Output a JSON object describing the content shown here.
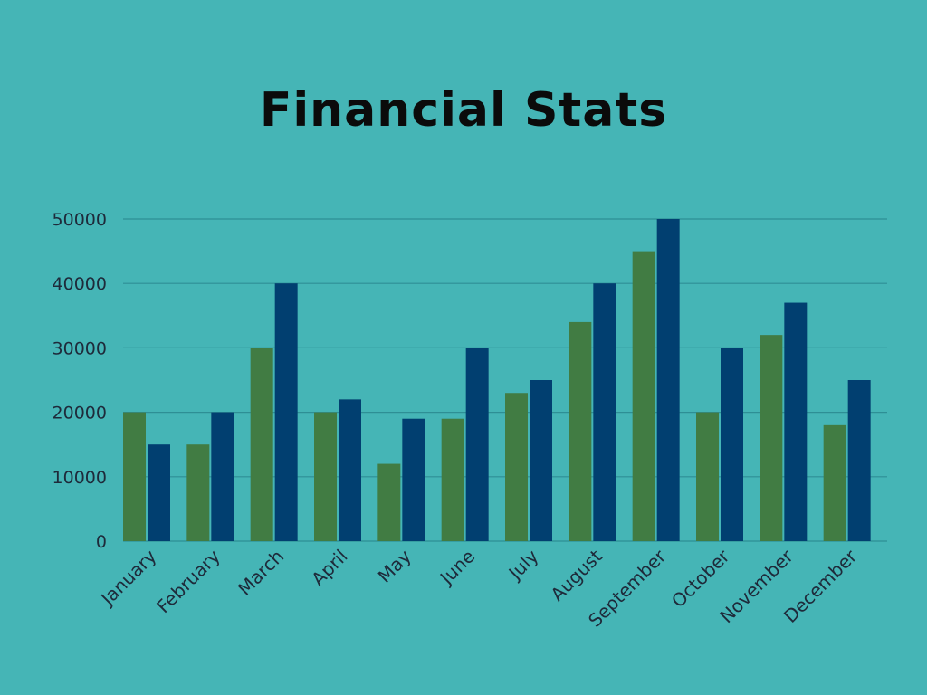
{
  "chart_data": {
    "type": "bar",
    "title": "Financial Stats",
    "xlabel": "",
    "ylabel": "",
    "categories": [
      "January",
      "February",
      "March",
      "April",
      "May",
      "June",
      "July",
      "August",
      "September",
      "October",
      "November",
      "December"
    ],
    "series": [
      {
        "color": "#417c43",
        "values": [
          20000,
          15000,
          30000,
          20000,
          12000,
          19000,
          23000,
          34000,
          45000,
          20000,
          32000,
          18000
        ]
      },
      {
        "color": "#013f70",
        "values": [
          15000,
          20000,
          40000,
          22000,
          19000,
          30000,
          25000,
          40000,
          50000,
          30000,
          37000,
          25000
        ]
      }
    ],
    "ylim": [
      0,
      50000
    ],
    "yticks": [
      "0",
      "10000",
      "20000",
      "30000",
      "40000",
      "50000"
    ],
    "grid": true,
    "legend": "none",
    "colors": {
      "background": "#45b5b6",
      "gridline": "#2e8f95",
      "text": "#1e2a3a",
      "title": "#0b0b0b"
    }
  }
}
